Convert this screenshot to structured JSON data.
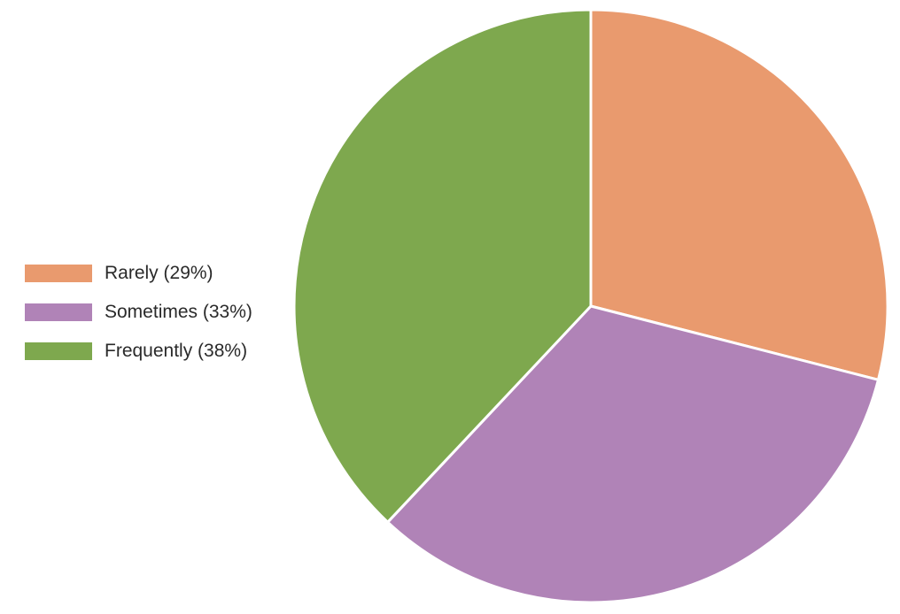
{
  "chart_data": {
    "type": "pie",
    "start_angle": "top",
    "direction": "clockwise",
    "legend_position": "left",
    "slices": [
      {
        "label": "Rarely (29%)",
        "value": 29,
        "color": "#e99a6e"
      },
      {
        "label": "Sometimes (33%)",
        "value": 33,
        "color": "#b083b7"
      },
      {
        "label": "Frequently (38%)",
        "value": 38,
        "color": "#7ea84e"
      }
    ]
  }
}
